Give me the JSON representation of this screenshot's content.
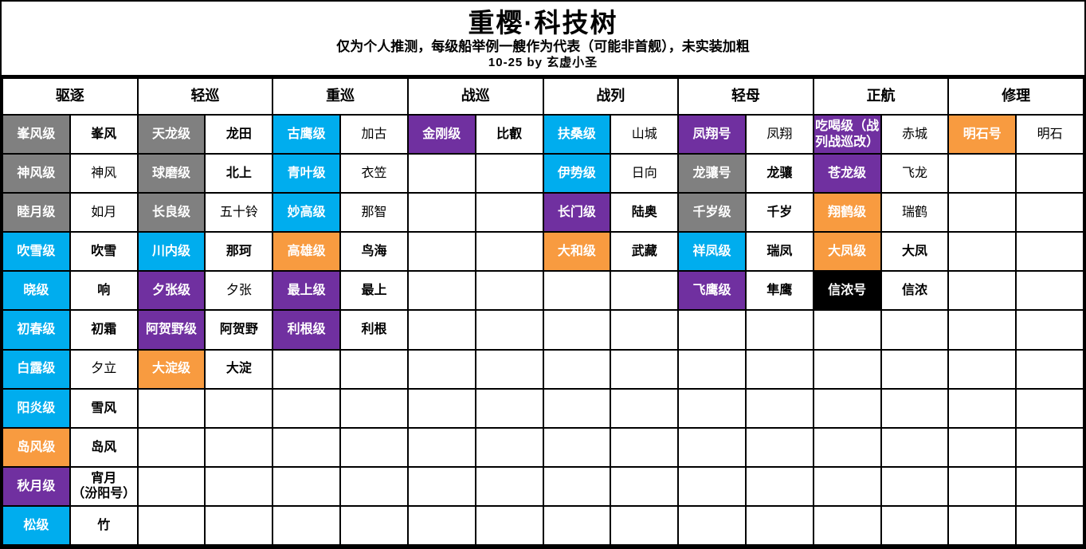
{
  "title": "重樱·科技树",
  "subtitle": "仅为个人推测，每级船举例一艘作为代表（可能非首舰），未实装加粗",
  "byline": "10-25 by 玄虚小圣",
  "colors": {
    "gray": "#808080",
    "blue": "#00ADEE",
    "purple": "#7030A0",
    "orange": "#F89B40",
    "black": "#000000"
  },
  "num_rows": 11,
  "columns": [
    {
      "key": "destroyer",
      "header": "驱逐",
      "rows": [
        {
          "class": "峯风级",
          "color": "gray",
          "ship": "峯风",
          "bold": true
        },
        {
          "class": "神风级",
          "color": "gray",
          "ship": "神风",
          "bold": false
        },
        {
          "class": "睦月级",
          "color": "gray",
          "ship": "如月",
          "bold": false
        },
        {
          "class": "吹雪级",
          "color": "blue",
          "ship": "吹雪",
          "bold": true
        },
        {
          "class": "晓级",
          "color": "blue",
          "ship": "响",
          "bold": true
        },
        {
          "class": "初春级",
          "color": "blue",
          "ship": "初霜",
          "bold": true
        },
        {
          "class": "白露级",
          "color": "blue",
          "ship": "夕立",
          "bold": false
        },
        {
          "class": "阳炎级",
          "color": "blue",
          "ship": "雪风",
          "bold": true
        },
        {
          "class": "岛风级",
          "color": "orange",
          "ship": "岛风",
          "bold": true
        },
        {
          "class": "秋月级",
          "color": "purple",
          "ship": "宵月\n（汾阳号）",
          "bold": true
        },
        {
          "class": "松级",
          "color": "blue",
          "ship": "竹",
          "bold": true
        }
      ]
    },
    {
      "key": "light-cruiser",
      "header": "轻巡",
      "rows": [
        {
          "class": "天龙级",
          "color": "gray",
          "ship": "龙田",
          "bold": true
        },
        {
          "class": "球磨级",
          "color": "gray",
          "ship": "北上",
          "bold": true
        },
        {
          "class": "长良级",
          "color": "gray",
          "ship": "五十铃",
          "bold": false
        },
        {
          "class": "川内级",
          "color": "blue",
          "ship": "那珂",
          "bold": true
        },
        {
          "class": "夕张级",
          "color": "purple",
          "ship": "夕张",
          "bold": false
        },
        {
          "class": "阿贺野级",
          "color": "purple",
          "ship": "阿贺野",
          "bold": true
        },
        {
          "class": "大淀级",
          "color": "orange",
          "ship": "大淀",
          "bold": true
        }
      ]
    },
    {
      "key": "heavy-cruiser",
      "header": "重巡",
      "rows": [
        {
          "class": "古鹰级",
          "color": "blue",
          "ship": "加古",
          "bold": false
        },
        {
          "class": "青叶级",
          "color": "blue",
          "ship": "衣笠",
          "bold": false
        },
        {
          "class": "妙高级",
          "color": "blue",
          "ship": "那智",
          "bold": false
        },
        {
          "class": "高雄级",
          "color": "orange",
          "ship": "鸟海",
          "bold": true
        },
        {
          "class": "最上级",
          "color": "purple",
          "ship": "最上",
          "bold": true
        },
        {
          "class": "利根级",
          "color": "purple",
          "ship": "利根",
          "bold": true
        }
      ]
    },
    {
      "key": "battlecruiser",
      "header": "战巡",
      "rows": [
        {
          "class": "金刚级",
          "color": "purple",
          "ship": "比叡",
          "bold": true
        }
      ]
    },
    {
      "key": "battleship",
      "header": "战列",
      "rows": [
        {
          "class": "扶桑级",
          "color": "blue",
          "ship": "山城",
          "bold": false
        },
        {
          "class": "伊势级",
          "color": "blue",
          "ship": "日向",
          "bold": false
        },
        {
          "class": "长门级",
          "color": "purple",
          "ship": "陆奥",
          "bold": true
        },
        {
          "class": "大和级",
          "color": "orange",
          "ship": "武藏",
          "bold": true
        }
      ]
    },
    {
      "key": "light-carrier",
      "header": "轻母",
      "rows": [
        {
          "class": "凤翔号",
          "color": "purple",
          "ship": "凤翔",
          "bold": false
        },
        {
          "class": "龙骧号",
          "color": "gray",
          "ship": "龙骧",
          "bold": true
        },
        {
          "class": "千岁级",
          "color": "gray",
          "ship": "千岁",
          "bold": true
        },
        {
          "class": "祥凤级",
          "color": "blue",
          "ship": "瑞凤",
          "bold": true
        },
        {
          "class": "飞鹰级",
          "color": "purple",
          "ship": "隼鹰",
          "bold": true
        }
      ]
    },
    {
      "key": "carrier",
      "header": "正航",
      "rows": [
        {
          "class": "吃喝级（战\n列战巡改）",
          "color": "purple",
          "ship": "赤城",
          "bold": false
        },
        {
          "class": "苍龙级",
          "color": "purple",
          "ship": "飞龙",
          "bold": false
        },
        {
          "class": "翔鹤级",
          "color": "orange",
          "ship": "瑞鹤",
          "bold": false
        },
        {
          "class": "大凤级",
          "color": "orange",
          "ship": "大凤",
          "bold": true
        },
        {
          "class": "信浓号",
          "color": "black",
          "ship": "信浓",
          "bold": true
        }
      ]
    },
    {
      "key": "repair",
      "header": "修理",
      "rows": [
        {
          "class": "明石号",
          "color": "orange",
          "ship": "明石",
          "bold": false
        }
      ]
    }
  ]
}
